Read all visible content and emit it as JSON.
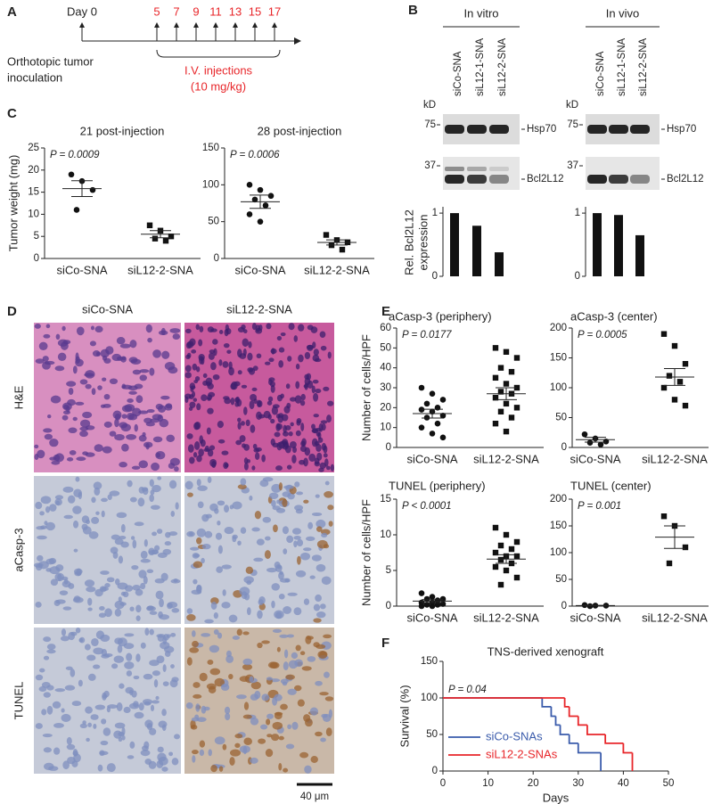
{
  "panel_labels": [
    "A",
    "B",
    "C",
    "D",
    "E",
    "F"
  ],
  "timeline": {
    "start_label": "Day 0",
    "days": [
      5,
      7,
      9,
      11,
      13,
      15,
      17
    ],
    "inoculation": [
      "Orthotopic tumor",
      "inoculation"
    ],
    "injections": [
      "I.V. injections",
      "(10 mg/kg)"
    ]
  },
  "blots": {
    "kd_label": "kD",
    "markers": [
      {
        "kd": 75,
        "protein": "Hsp70"
      },
      {
        "kd": 37,
        "protein": "Bcl2L12"
      }
    ]
  },
  "histology": {
    "columns": [
      "siCo-SNA",
      "siL12-2-SNA"
    ],
    "rows": [
      "H&E",
      "aCasp-3",
      "TUNEL"
    ],
    "scale_bar": "40 μm"
  },
  "chart_data": [
    {
      "type": "dotplot",
      "title": "21 post-injection",
      "y_label": "Tumor weight (mg)",
      "annotation": "P = 0.0009",
      "categories": [
        "siCo-SNA",
        "siL12-2-SNA"
      ],
      "points": [
        [
          19,
          17.5,
          15.5,
          11
        ],
        [
          7.5,
          6.3,
          5,
          4.5,
          4
        ]
      ],
      "means": [
        15.8,
        5.5
      ],
      "errors": [
        1.8,
        0.8
      ],
      "ylim": [
        0,
        25
      ],
      "yticks": [
        0,
        5,
        10,
        15,
        20,
        25
      ]
    },
    {
      "type": "dotplot",
      "title": "28 post-injection",
      "annotation": "P = 0.0006",
      "categories": [
        "siCo-SNA",
        "siL12-2-SNA"
      ],
      "points": [
        [
          100,
          93,
          85,
          80,
          72,
          60,
          50
        ],
        [
          32,
          25,
          22,
          18,
          12
        ]
      ],
      "means": [
        77,
        21.8
      ],
      "errors": [
        9,
        3.5
      ],
      "ylim": [
        0,
        150
      ],
      "yticks": [
        0,
        50,
        100,
        150
      ]
    },
    {
      "type": "bar",
      "title": "In vitro",
      "y_label": [
        "Rel. Bcl2L12",
        "expression"
      ],
      "categories": [
        "siCo-SNA",
        "siL12-1-SNA",
        "siL12-2-SNA"
      ],
      "values": [
        1.0,
        0.8,
        0.38
      ],
      "color": "#111111",
      "ylim": [
        0,
        1.1
      ],
      "yticks": [
        0,
        1
      ]
    },
    {
      "type": "bar",
      "title": "In vivo",
      "categories": [
        "siCo-SNA",
        "siL12-1-SNA",
        "siL12-2-SNA"
      ],
      "values": [
        1.0,
        0.97,
        0.65
      ],
      "color": "#111111",
      "ylim": [
        0,
        1.1
      ],
      "yticks": [
        0,
        1
      ]
    },
    {
      "type": "dotplot",
      "title": "aCasp-3 (periphery)",
      "y_label": "Number of cells/HPF",
      "annotation": "P = 0.0177",
      "categories": [
        "siCo-SNA",
        "siL12-2-SNA"
      ],
      "points": [
        [
          30,
          27,
          24,
          22,
          20,
          19,
          18,
          16,
          15,
          12,
          10,
          7,
          5
        ],
        [
          50,
          48,
          45,
          40,
          38,
          35,
          32,
          30,
          28,
          27,
          25,
          22,
          20,
          18,
          15,
          12,
          8
        ]
      ],
      "means": [
        17,
        27
      ],
      "errors": [
        2.2,
        3
      ],
      "ylim": [
        0,
        60
      ],
      "yticks": [
        0,
        10,
        20,
        30,
        40,
        50,
        60
      ]
    },
    {
      "type": "dotplot",
      "title": "aCasp-3 (center)",
      "annotation": "P = 0.0005",
      "categories": [
        "siCo-SNA",
        "siL12-2-SNA"
      ],
      "points": [
        [
          22,
          15,
          10,
          8,
          5
        ],
        [
          190,
          170,
          140,
          120,
          110,
          100,
          80,
          70
        ]
      ],
      "means": [
        13,
        118
      ],
      "errors": [
        4,
        14
      ],
      "ylim": [
        0,
        200
      ],
      "yticks": [
        0,
        50,
        100,
        150,
        200
      ]
    },
    {
      "type": "dotplot",
      "title": "TUNEL (periphery)",
      "y_label": "Number of cells/HPF",
      "annotation": "P < 0.0001",
      "categories": [
        "siCo-SNA",
        "siL12-2-SNA"
      ],
      "points": [
        [
          1.8,
          1.3,
          1,
          1,
          0.8,
          0.5,
          0.5,
          0.3,
          0.2,
          0.2,
          0,
          0
        ],
        [
          11,
          10,
          9,
          8.5,
          8,
          7.5,
          7,
          7,
          6.5,
          6,
          5.5,
          5,
          4,
          3
        ]
      ],
      "means": [
        0.7,
        6.6
      ],
      "errors": [
        0.2,
        0.6
      ],
      "ylim": [
        0,
        15
      ],
      "yticks": [
        0,
        5,
        10,
        15
      ]
    },
    {
      "type": "dotplot",
      "title": "TUNEL (center)",
      "annotation": "P = 0.001",
      "categories": [
        "siCo-SNA",
        "siL12-2-SNA"
      ],
      "points": [
        [
          2,
          1,
          1,
          0
        ],
        [
          168,
          150,
          110,
          80
        ]
      ],
      "means": [
        1,
        129
      ],
      "errors": [
        0.5,
        21
      ],
      "ylim": [
        0,
        200
      ],
      "yticks": [
        0,
        50,
        100,
        150,
        200
      ]
    },
    {
      "type": "survival",
      "title": "TNS-derived xenograft",
      "x_label": "Days",
      "y_label": "Survival (%)",
      "annotation": "P = 0.04",
      "xlim": [
        0,
        50
      ],
      "xticks": [
        0,
        10,
        20,
        30,
        40,
        50
      ],
      "ylim": [
        0,
        150
      ],
      "yticks": [
        0,
        50,
        100,
        150
      ],
      "legend": "lower left",
      "series": [
        {
          "name": "siCo-SNAs",
          "color": "#3a5bab",
          "x": [
            0,
            22,
            24,
            25,
            26,
            28,
            30,
            35
          ],
          "values": [
            100,
            88,
            75,
            63,
            50,
            38,
            25,
            0
          ]
        },
        {
          "name": "siL12-2-SNAs",
          "color": "#e8262a",
          "x": [
            0,
            27,
            28,
            30,
            32,
            36,
            40,
            42
          ],
          "values": [
            100,
            88,
            75,
            63,
            50,
            38,
            25,
            0
          ]
        }
      ]
    }
  ]
}
